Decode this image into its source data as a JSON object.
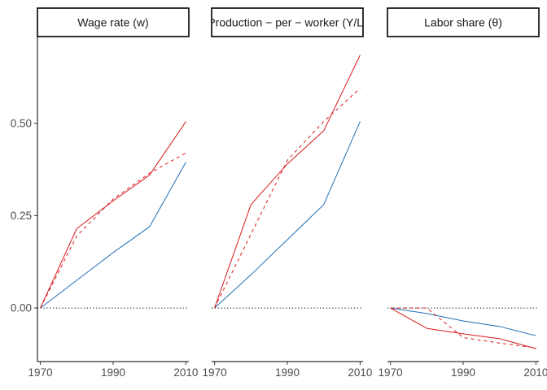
{
  "chart_data": {
    "type": "line",
    "facets": [
      {
        "title": "Wage rate (w)",
        "x": [
          1970,
          1980,
          1990,
          2000,
          2010
        ],
        "series": [
          {
            "color": "#1F6FB4",
            "dash": "solid",
            "values": [
              0.0,
              0.075,
              0.15,
              0.22,
              0.395
            ]
          },
          {
            "color": "#D7191C",
            "dash": "solid",
            "values": [
              0.0,
              0.215,
              0.29,
              0.36,
              0.505
            ]
          },
          {
            "color": "#D7191C",
            "dash": "dashed",
            "values": [
              0.0,
              0.195,
              0.295,
              0.365,
              0.42
            ]
          }
        ]
      },
      {
        "title": "Production − per − worker (Y/L)",
        "x": [
          1970,
          1980,
          1990,
          2000,
          2010
        ],
        "series": [
          {
            "color": "#1F6FB4",
            "dash": "solid",
            "values": [
              0.0,
              0.09,
              0.185,
              0.28,
              0.505
            ]
          },
          {
            "color": "#D7191C",
            "dash": "solid",
            "values": [
              0.0,
              0.28,
              0.39,
              0.48,
              0.685
            ]
          },
          {
            "color": "#D7191C",
            "dash": "dashed",
            "values": [
              0.0,
              0.2,
              0.4,
              0.505,
              0.595
            ]
          }
        ]
      },
      {
        "title": "Labor share (θ)",
        "x": [
          1970,
          1980,
          1990,
          2000,
          2010
        ],
        "series": [
          {
            "color": "#1F6FB4",
            "dash": "solid",
            "values": [
              0.0,
              -0.015,
              -0.035,
              -0.05,
              -0.075
            ]
          },
          {
            "color": "#D7191C",
            "dash": "solid",
            "values": [
              0.0,
              -0.055,
              -0.07,
              -0.083,
              -0.11
            ]
          },
          {
            "color": "#D7191C",
            "dash": "dashed",
            "values": [
              0.0,
              0.0,
              -0.08,
              -0.095,
              -0.108
            ]
          }
        ]
      }
    ],
    "y_ticks": [
      0.0,
      0.25,
      0.5
    ],
    "y_tick_labels": [
      "0.00",
      "0.25",
      "0.50"
    ],
    "x_ticks": [
      1970,
      1990,
      2010
    ],
    "x_tick_labels": [
      "1970",
      "1990",
      "2010"
    ],
    "ylim": [
      -0.145,
      0.735
    ],
    "xlim": [
      1969.2,
      2010.8
    ],
    "reference_line": {
      "y": 0,
      "style": "dotted",
      "color": "#000000"
    },
    "grid": false,
    "legend": "none"
  }
}
